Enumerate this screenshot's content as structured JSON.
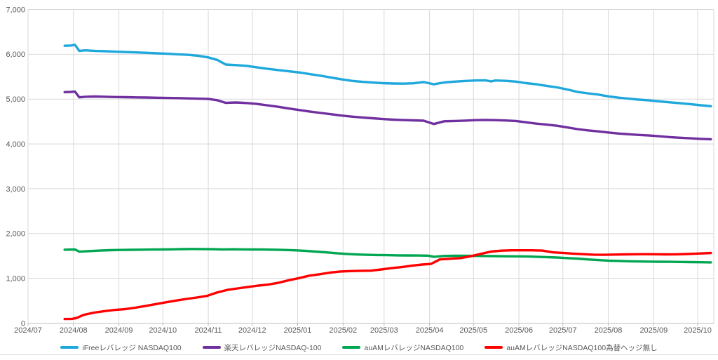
{
  "chart_data": {
    "type": "line",
    "title": "",
    "xlabel": "",
    "ylabel": "",
    "background": "#ffffff",
    "grid": true,
    "grid_color": "#d9d9d9",
    "axis_line_color": "#bfbfbf",
    "tick_label_color": "#595959",
    "legend_position": "bottom",
    "y_axis": {
      "min": 0,
      "max": 7000,
      "step": 1000,
      "tick_labels": [
        "0",
        "1,000",
        "2,000",
        "3,000",
        "4,000",
        "5,000",
        "6,000",
        "7,000"
      ]
    },
    "x_axis": {
      "start_date": "2024/07/01",
      "end_date": "2025/10/12",
      "tick_labels": [
        "2024/07",
        "2024/08",
        "2024/09",
        "2024/10",
        "2024/11",
        "2024/12",
        "2025/01",
        "2025/02",
        "2025/03",
        "2025/04",
        "2025/05",
        "2025/06",
        "2025/07",
        "2025/08",
        "2025/09",
        "2025/10"
      ]
    },
    "series": [
      {
        "name": "iFreeレバレッジ NASDAQ100",
        "id": "ifree-leveraged-nasdaq100",
        "color": "#1fa8dc",
        "points": [
          [
            "2024/07/26",
            6190
          ],
          [
            "2024/07/30",
            6195
          ],
          [
            "2024/08/02",
            6212
          ],
          [
            "2024/08/05",
            6075
          ],
          [
            "2024/08/09",
            6088
          ],
          [
            "2024/08/16",
            6075
          ],
          [
            "2024/08/23",
            6068
          ],
          [
            "2024/08/30",
            6058
          ],
          [
            "2024/09/06",
            6050
          ],
          [
            "2024/09/13",
            6042
          ],
          [
            "2024/09/20",
            6032
          ],
          [
            "2024/09/27",
            6022
          ],
          [
            "2024/10/04",
            6012
          ],
          [
            "2024/10/11",
            6000
          ],
          [
            "2024/10/18",
            5988
          ],
          [
            "2024/10/25",
            5968
          ],
          [
            "2024/11/01",
            5930
          ],
          [
            "2024/11/07",
            5875
          ],
          [
            "2024/11/13",
            5770
          ],
          [
            "2024/11/20",
            5758
          ],
          [
            "2024/11/27",
            5742
          ],
          [
            "2024/12/04",
            5710
          ],
          [
            "2024/12/11",
            5678
          ],
          [
            "2024/12/18",
            5650
          ],
          [
            "2024/12/25",
            5625
          ],
          [
            "2025/01/03",
            5590
          ],
          [
            "2025/01/10",
            5555
          ],
          [
            "2025/01/17",
            5520
          ],
          [
            "2025/01/24",
            5480
          ],
          [
            "2025/01/31",
            5440
          ],
          [
            "2025/02/07",
            5408
          ],
          [
            "2025/02/14",
            5385
          ],
          [
            "2025/02/21",
            5370
          ],
          [
            "2025/02/28",
            5355
          ],
          [
            "2025/03/07",
            5348
          ],
          [
            "2025/03/14",
            5345
          ],
          [
            "2025/03/21",
            5352
          ],
          [
            "2025/03/28",
            5380
          ],
          [
            "2025/04/04",
            5330
          ],
          [
            "2025/04/11",
            5372
          ],
          [
            "2025/04/18",
            5390
          ],
          [
            "2025/04/25",
            5405
          ],
          [
            "2025/05/02",
            5415
          ],
          [
            "2025/05/09",
            5420
          ],
          [
            "2025/05/13",
            5395
          ],
          [
            "2025/05/16",
            5415
          ],
          [
            "2025/05/23",
            5408
          ],
          [
            "2025/05/30",
            5390
          ],
          [
            "2025/06/06",
            5355
          ],
          [
            "2025/06/13",
            5330
          ],
          [
            "2025/06/20",
            5295
          ],
          [
            "2025/06/27",
            5262
          ],
          [
            "2025/07/04",
            5215
          ],
          [
            "2025/07/11",
            5160
          ],
          [
            "2025/07/18",
            5128
          ],
          [
            "2025/07/25",
            5102
          ],
          [
            "2025/08/01",
            5062
          ],
          [
            "2025/08/08",
            5032
          ],
          [
            "2025/08/15",
            5010
          ],
          [
            "2025/08/22",
            4988
          ],
          [
            "2025/08/29",
            4970
          ],
          [
            "2025/09/05",
            4948
          ],
          [
            "2025/09/12",
            4928
          ],
          [
            "2025/09/19",
            4908
          ],
          [
            "2025/09/26",
            4888
          ],
          [
            "2025/10/03",
            4862
          ],
          [
            "2025/10/10",
            4842
          ]
        ]
      },
      {
        "name": "楽天レバレッジNASDAQ-100",
        "id": "rakuten-leveraged-nasdaq-100",
        "color": "#7030a0",
        "points": [
          [
            "2024/07/26",
            5155
          ],
          [
            "2024/07/30",
            5160
          ],
          [
            "2024/08/02",
            5168
          ],
          [
            "2024/08/05",
            5040
          ],
          [
            "2024/08/09",
            5052
          ],
          [
            "2024/08/16",
            5058
          ],
          [
            "2024/08/23",
            5052
          ],
          [
            "2024/08/30",
            5046
          ],
          [
            "2024/09/06",
            5042
          ],
          [
            "2024/09/13",
            5038
          ],
          [
            "2024/09/20",
            5034
          ],
          [
            "2024/09/27",
            5030
          ],
          [
            "2024/10/04",
            5026
          ],
          [
            "2024/10/11",
            5022
          ],
          [
            "2024/10/18",
            5016
          ],
          [
            "2024/10/25",
            5010
          ],
          [
            "2024/11/01",
            5005
          ],
          [
            "2024/11/07",
            4975
          ],
          [
            "2024/11/13",
            4915
          ],
          [
            "2024/11/20",
            4925
          ],
          [
            "2024/11/27",
            4912
          ],
          [
            "2024/12/04",
            4892
          ],
          [
            "2024/12/11",
            4862
          ],
          [
            "2024/12/18",
            4832
          ],
          [
            "2024/12/25",
            4795
          ],
          [
            "2025/01/03",
            4752
          ],
          [
            "2025/01/10",
            4718
          ],
          [
            "2025/01/17",
            4690
          ],
          [
            "2025/01/24",
            4662
          ],
          [
            "2025/01/31",
            4632
          ],
          [
            "2025/02/07",
            4608
          ],
          [
            "2025/02/14",
            4590
          ],
          [
            "2025/02/21",
            4572
          ],
          [
            "2025/02/28",
            4555
          ],
          [
            "2025/03/07",
            4542
          ],
          [
            "2025/03/14",
            4532
          ],
          [
            "2025/03/21",
            4525
          ],
          [
            "2025/03/28",
            4518
          ],
          [
            "2025/04/04",
            4445
          ],
          [
            "2025/04/11",
            4505
          ],
          [
            "2025/04/18",
            4512
          ],
          [
            "2025/04/25",
            4520
          ],
          [
            "2025/05/02",
            4530
          ],
          [
            "2025/05/09",
            4535
          ],
          [
            "2025/05/16",
            4530
          ],
          [
            "2025/05/23",
            4522
          ],
          [
            "2025/05/30",
            4512
          ],
          [
            "2025/06/06",
            4482
          ],
          [
            "2025/06/13",
            4452
          ],
          [
            "2025/06/20",
            4430
          ],
          [
            "2025/06/27",
            4405
          ],
          [
            "2025/07/04",
            4368
          ],
          [
            "2025/07/11",
            4330
          ],
          [
            "2025/07/18",
            4302
          ],
          [
            "2025/07/25",
            4280
          ],
          [
            "2025/08/01",
            4255
          ],
          [
            "2025/08/08",
            4232
          ],
          [
            "2025/08/15",
            4215
          ],
          [
            "2025/08/22",
            4200
          ],
          [
            "2025/08/29",
            4188
          ],
          [
            "2025/09/05",
            4170
          ],
          [
            "2025/09/12",
            4152
          ],
          [
            "2025/09/19",
            4138
          ],
          [
            "2025/09/26",
            4125
          ],
          [
            "2025/10/03",
            4112
          ],
          [
            "2025/10/10",
            4105
          ]
        ]
      },
      {
        "name": "auAMレバレッジNASDAQ100",
        "id": "auam-leveraged-nasdaq100",
        "color": "#00a651",
        "points": [
          [
            "2024/07/26",
            1640
          ],
          [
            "2024/08/02",
            1645
          ],
          [
            "2024/08/05",
            1595
          ],
          [
            "2024/08/12",
            1608
          ],
          [
            "2024/08/19",
            1620
          ],
          [
            "2024/08/26",
            1628
          ],
          [
            "2024/09/02",
            1633
          ],
          [
            "2024/09/09",
            1637
          ],
          [
            "2024/09/16",
            1640
          ],
          [
            "2024/09/23",
            1642
          ],
          [
            "2024/09/30",
            1644
          ],
          [
            "2024/10/07",
            1648
          ],
          [
            "2024/10/14",
            1652
          ],
          [
            "2024/10/21",
            1655
          ],
          [
            "2024/10/28",
            1653
          ],
          [
            "2024/11/04",
            1650
          ],
          [
            "2024/11/11",
            1646
          ],
          [
            "2024/11/18",
            1649
          ],
          [
            "2024/11/25",
            1646
          ],
          [
            "2024/12/02",
            1644
          ],
          [
            "2024/12/09",
            1642
          ],
          [
            "2024/12/16",
            1640
          ],
          [
            "2024/12/23",
            1634
          ],
          [
            "2024/12/30",
            1626
          ],
          [
            "2025/01/06",
            1614
          ],
          [
            "2025/01/13",
            1598
          ],
          [
            "2025/01/20",
            1582
          ],
          [
            "2025/01/27",
            1562
          ],
          [
            "2025/02/03",
            1545
          ],
          [
            "2025/02/10",
            1533
          ],
          [
            "2025/02/17",
            1526
          ],
          [
            "2025/02/24",
            1521
          ],
          [
            "2025/03/03",
            1517
          ],
          [
            "2025/03/10",
            1513
          ],
          [
            "2025/03/17",
            1511
          ],
          [
            "2025/03/24",
            1509
          ],
          [
            "2025/03/31",
            1506
          ],
          [
            "2025/04/04",
            1482
          ],
          [
            "2025/04/11",
            1500
          ],
          [
            "2025/04/18",
            1503
          ],
          [
            "2025/04/25",
            1503
          ],
          [
            "2025/05/02",
            1501
          ],
          [
            "2025/05/09",
            1499
          ],
          [
            "2025/05/16",
            1496
          ],
          [
            "2025/05/23",
            1493
          ],
          [
            "2025/05/30",
            1491
          ],
          [
            "2025/06/06",
            1489
          ],
          [
            "2025/06/13",
            1482
          ],
          [
            "2025/06/20",
            1474
          ],
          [
            "2025/06/27",
            1464
          ],
          [
            "2025/07/04",
            1452
          ],
          [
            "2025/07/11",
            1440
          ],
          [
            "2025/07/18",
            1422
          ],
          [
            "2025/07/25",
            1408
          ],
          [
            "2025/08/01",
            1396
          ],
          [
            "2025/08/08",
            1389
          ],
          [
            "2025/08/15",
            1381
          ],
          [
            "2025/08/22",
            1376
          ],
          [
            "2025/08/29",
            1373
          ],
          [
            "2025/09/05",
            1371
          ],
          [
            "2025/09/12",
            1369
          ],
          [
            "2025/09/19",
            1366
          ],
          [
            "2025/09/26",
            1363
          ],
          [
            "2025/10/03",
            1359
          ],
          [
            "2025/10/10",
            1356
          ]
        ]
      },
      {
        "name": "auAMレバレッジNASDAQ100為替ヘッジ無し",
        "id": "auam-leveraged-nasdaq100-unhedged",
        "color": "#ff0000",
        "points": [
          [
            "2024/07/26",
            92
          ],
          [
            "2024/07/31",
            95
          ],
          [
            "2024/08/03",
            115
          ],
          [
            "2024/08/08",
            185
          ],
          [
            "2024/08/15",
            235
          ],
          [
            "2024/08/22",
            268
          ],
          [
            "2024/08/29",
            295
          ],
          [
            "2024/09/05",
            312
          ],
          [
            "2024/09/12",
            345
          ],
          [
            "2024/09/19",
            382
          ],
          [
            "2024/09/26",
            425
          ],
          [
            "2024/10/03",
            465
          ],
          [
            "2024/10/10",
            505
          ],
          [
            "2024/10/17",
            540
          ],
          [
            "2024/10/24",
            572
          ],
          [
            "2024/10/31",
            608
          ],
          [
            "2024/11/07",
            685
          ],
          [
            "2024/11/14",
            742
          ],
          [
            "2024/11/21",
            775
          ],
          [
            "2024/11/28",
            808
          ],
          [
            "2024/12/05",
            838
          ],
          [
            "2024/12/12",
            862
          ],
          [
            "2024/12/19",
            902
          ],
          [
            "2024/12/26",
            958
          ],
          [
            "2025/01/02",
            1005
          ],
          [
            "2025/01/09",
            1060
          ],
          [
            "2025/01/16",
            1092
          ],
          [
            "2025/01/23",
            1128
          ],
          [
            "2025/01/30",
            1152
          ],
          [
            "2025/02/06",
            1162
          ],
          [
            "2025/02/13",
            1168
          ],
          [
            "2025/02/20",
            1172
          ],
          [
            "2025/02/27",
            1198
          ],
          [
            "2025/03/06",
            1228
          ],
          [
            "2025/03/13",
            1252
          ],
          [
            "2025/03/20",
            1282
          ],
          [
            "2025/03/27",
            1308
          ],
          [
            "2025/04/02",
            1322
          ],
          [
            "2025/04/08",
            1422
          ],
          [
            "2025/04/15",
            1438
          ],
          [
            "2025/04/22",
            1452
          ],
          [
            "2025/04/29",
            1492
          ],
          [
            "2025/05/06",
            1545
          ],
          [
            "2025/05/13",
            1598
          ],
          [
            "2025/05/20",
            1618
          ],
          [
            "2025/05/27",
            1625
          ],
          [
            "2025/06/03",
            1626
          ],
          [
            "2025/06/10",
            1625
          ],
          [
            "2025/06/17",
            1620
          ],
          [
            "2025/06/24",
            1580
          ],
          [
            "2025/07/01",
            1568
          ],
          [
            "2025/07/08",
            1552
          ],
          [
            "2025/07/15",
            1540
          ],
          [
            "2025/07/22",
            1528
          ],
          [
            "2025/07/29",
            1525
          ],
          [
            "2025/08/05",
            1530
          ],
          [
            "2025/08/12",
            1534
          ],
          [
            "2025/08/19",
            1538
          ],
          [
            "2025/08/26",
            1540
          ],
          [
            "2025/09/02",
            1538
          ],
          [
            "2025/09/09",
            1535
          ],
          [
            "2025/09/16",
            1536
          ],
          [
            "2025/09/23",
            1542
          ],
          [
            "2025/09/30",
            1552
          ],
          [
            "2025/10/07",
            1562
          ],
          [
            "2025/10/10",
            1566
          ]
        ]
      }
    ]
  }
}
